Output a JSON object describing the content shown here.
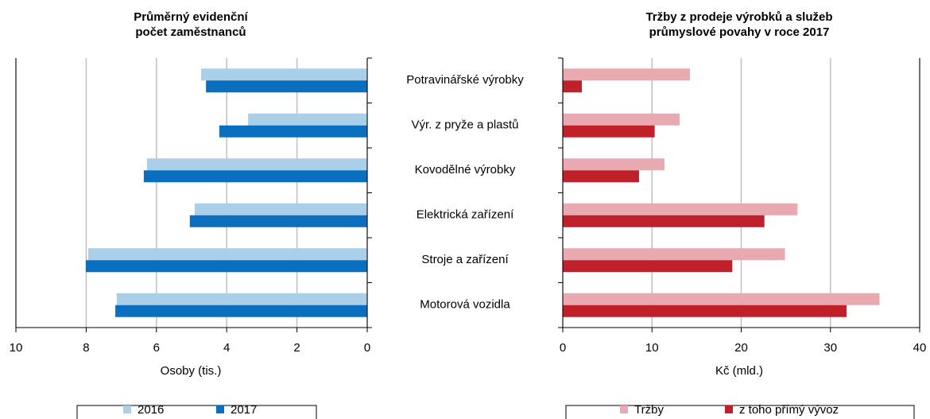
{
  "chart_data": [
    {
      "type": "bar",
      "title": "Průměrný evidenční počet zaměstnanců",
      "title_lines": [
        "Průměrný evidenční",
        "počet zaměstnanců"
      ],
      "xlabel": "Osoby (tis.)",
      "categories": [
        "Potravinářské výrobky",
        "Výr. z pryže a plastů",
        "Kovodělné výrobky",
        "Elektrická zařízení",
        "Stroje a zařízení",
        "Motorová vozidla"
      ],
      "series": [
        {
          "name": "2016",
          "color": "#a9cfe9",
          "values": [
            4.73,
            3.39,
            6.27,
            4.91,
            7.94,
            7.13
          ]
        },
        {
          "name": "2017",
          "color": "#0a6fbf",
          "values": [
            4.59,
            4.21,
            6.36,
            5.05,
            8.01,
            7.17
          ]
        }
      ],
      "xlim": [
        10,
        0
      ],
      "xticks": [
        10,
        8,
        6,
        4,
        2,
        0
      ],
      "grid": true
    },
    {
      "type": "bar",
      "title_lines": [
        "Tržby z prodeje výrobků a služeb",
        "průmyslové povahy v roce 2017"
      ],
      "xlabel": "Kč (mld.)",
      "series": [
        {
          "name": "Tržby",
          "color": "#e8a9b0",
          "values": [
            14.25,
            13.1,
            11.4,
            26.3,
            24.9,
            35.5
          ]
        },
        {
          "name": "z toho přímý vývoz",
          "color": "#c0202a",
          "values": [
            2.14,
            10.3,
            8.55,
            22.6,
            19.0,
            31.8
          ]
        }
      ],
      "xlim": [
        0,
        40
      ],
      "xticks": [
        0,
        10,
        20,
        30,
        40
      ],
      "grid": true
    }
  ]
}
